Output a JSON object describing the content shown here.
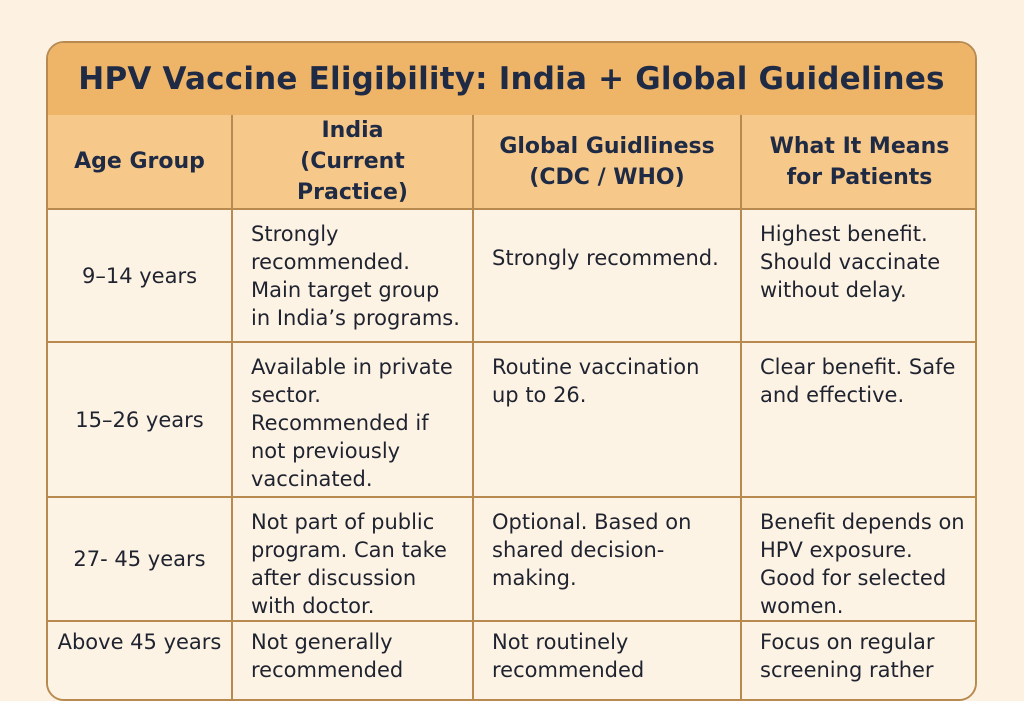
{
  "title": "HPV Vaccine Eligibility: India + Global Guidelines",
  "headers": [
    "Age Group",
    "India\n(Current Practice)",
    "Global Guidliness\n(CDC / WHO)",
    "What It Means\nfor Patients"
  ],
  "rows": [
    {
      "age": "9–14 years",
      "india": "Strongly recommended. Main target group in India’s programs.",
      "global": "Strongly recommend.",
      "patients": "Highest benefit. Should vaccinate without delay."
    },
    {
      "age": "15–26 years",
      "india": "Available in private sector. Recommended if not previously vaccinated.",
      "global": "Routine vaccination up to 26.",
      "patients": "Clear benefit. Safe and effective."
    },
    {
      "age": "27- 45 years",
      "india": "Not part of public program. Can take after discussion with doctor.",
      "global": "Optional. Based on shared decision-making.",
      "patients": "Benefit depends on HPV exposure. Good for selected women."
    },
    {
      "age": "Above 45 years",
      "india": "Not generally recommended",
      "global": "Not routinely recommended",
      "patients": "Focus on regular screening rather"
    }
  ],
  "colors": {
    "title_bar": "#eeb468",
    "header_bg": "#f6c98a",
    "border": "#b98a4f",
    "page_bg": "#fdf1e1"
  }
}
